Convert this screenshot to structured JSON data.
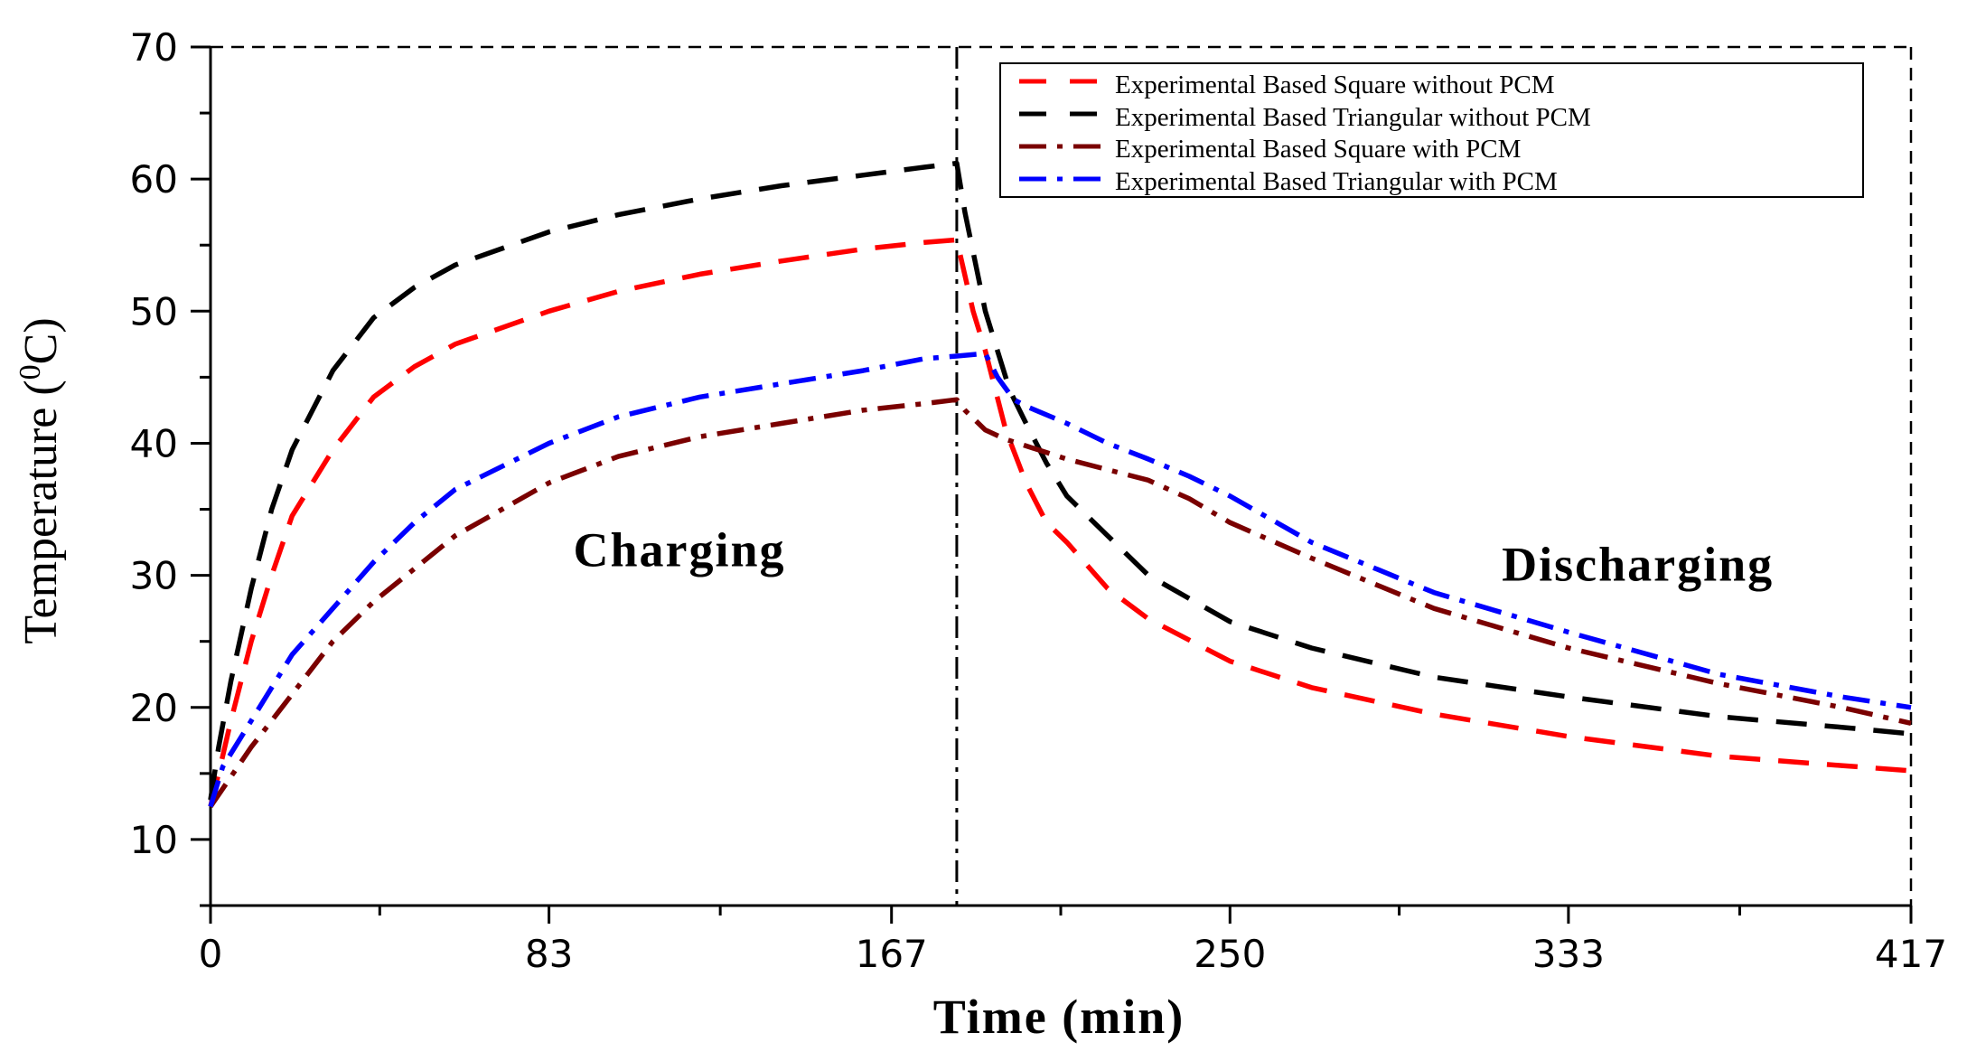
{
  "chart_data": {
    "type": "line",
    "xlabel": "Time (min)",
    "ylabel_main": "Temperature (",
    "ylabel_sup": "0",
    "ylabel_unit": "C)",
    "xlim": [
      0,
      417
    ],
    "ylim": [
      5,
      70
    ],
    "x_ticks": [
      0,
      83,
      167,
      250,
      333,
      417
    ],
    "x_tick_labels": [
      "0",
      "83",
      "167",
      "250",
      "333",
      "417"
    ],
    "y_ticks": [
      10,
      20,
      30,
      40,
      50,
      60,
      70
    ],
    "y_tick_labels": [
      "10",
      "20",
      "30",
      "40",
      "50",
      "60",
      "70"
    ],
    "divider_x": 183,
    "legend_position": "top-right",
    "annotations": [
      {
        "text": "Charging",
        "x": 115,
        "y": 30.7
      },
      {
        "text": "Discharging",
        "x": 350,
        "y": 29.6
      }
    ],
    "series": [
      {
        "name": "Experimental Based Square without PCM",
        "color": "#ff0000",
        "dash": "dash",
        "points": [
          [
            0,
            12.5
          ],
          [
            2,
            15
          ],
          [
            5,
            19
          ],
          [
            10,
            25
          ],
          [
            15,
            30
          ],
          [
            20,
            34.5
          ],
          [
            30,
            39.5
          ],
          [
            40,
            43.5
          ],
          [
            50,
            45.8
          ],
          [
            60,
            47.5
          ],
          [
            83,
            50
          ],
          [
            100,
            51.5
          ],
          [
            120,
            52.8
          ],
          [
            140,
            53.8
          ],
          [
            160,
            54.7
          ],
          [
            175,
            55.2
          ],
          [
            183,
            55.4
          ],
          [
            187,
            50
          ],
          [
            190,
            47
          ],
          [
            195,
            41
          ],
          [
            200,
            37
          ],
          [
            205,
            34
          ],
          [
            210,
            32.5
          ],
          [
            220,
            29
          ],
          [
            230,
            26.7
          ],
          [
            250,
            23.5
          ],
          [
            270,
            21.5
          ],
          [
            300,
            19.5
          ],
          [
            333,
            17.8
          ],
          [
            370,
            16.3
          ],
          [
            400,
            15.6
          ],
          [
            417,
            15.2
          ]
        ]
      },
      {
        "name": "Experimental Based Triangular without PCM",
        "color": "#000000",
        "dash": "dash",
        "points": [
          [
            0,
            13
          ],
          [
            2,
            17
          ],
          [
            5,
            22
          ],
          [
            10,
            29
          ],
          [
            15,
            35
          ],
          [
            20,
            39.5
          ],
          [
            30,
            45.5
          ],
          [
            40,
            49.5
          ],
          [
            50,
            51.8
          ],
          [
            60,
            53.5
          ],
          [
            83,
            56
          ],
          [
            100,
            57.3
          ],
          [
            120,
            58.5
          ],
          [
            140,
            59.5
          ],
          [
            160,
            60.3
          ],
          [
            175,
            60.9
          ],
          [
            183,
            61.2
          ],
          [
            185,
            57.5
          ],
          [
            188,
            53
          ],
          [
            190,
            50
          ],
          [
            193,
            47
          ],
          [
            196,
            44
          ],
          [
            200,
            41.5
          ],
          [
            205,
            38.5
          ],
          [
            210,
            36
          ],
          [
            220,
            33
          ],
          [
            230,
            30
          ],
          [
            250,
            26.5
          ],
          [
            270,
            24.5
          ],
          [
            300,
            22.3
          ],
          [
            333,
            20.8
          ],
          [
            370,
            19.3
          ],
          [
            400,
            18.5
          ],
          [
            417,
            18
          ]
        ]
      },
      {
        "name": "Experimental Based Square with PCM",
        "color": "#7a0000",
        "dash": "dashdot",
        "points": [
          [
            0,
            12.5
          ],
          [
            10,
            17
          ],
          [
            20,
            21
          ],
          [
            30,
            25
          ],
          [
            40,
            28
          ],
          [
            50,
            30.5
          ],
          [
            60,
            33
          ],
          [
            83,
            37
          ],
          [
            100,
            39
          ],
          [
            120,
            40.5
          ],
          [
            140,
            41.5
          ],
          [
            160,
            42.5
          ],
          [
            175,
            43
          ],
          [
            183,
            43.3
          ],
          [
            185,
            42.5
          ],
          [
            190,
            41
          ],
          [
            195,
            40.3
          ],
          [
            200,
            39.8
          ],
          [
            210,
            38.8
          ],
          [
            220,
            38
          ],
          [
            230,
            37.2
          ],
          [
            240,
            35.8
          ],
          [
            250,
            34
          ],
          [
            270,
            31.3
          ],
          [
            300,
            27.5
          ],
          [
            333,
            24.5
          ],
          [
            370,
            21.8
          ],
          [
            400,
            20
          ],
          [
            417,
            18.8
          ]
        ]
      },
      {
        "name": "Experimental Based Triangular with PCM",
        "color": "#0000ff",
        "dash": "dashdot",
        "points": [
          [
            0,
            12.5
          ],
          [
            3,
            15.5
          ],
          [
            10,
            19
          ],
          [
            20,
            24
          ],
          [
            30,
            27.5
          ],
          [
            40,
            31
          ],
          [
            50,
            34
          ],
          [
            60,
            36.5
          ],
          [
            83,
            40
          ],
          [
            100,
            42
          ],
          [
            120,
            43.5
          ],
          [
            140,
            44.5
          ],
          [
            160,
            45.5
          ],
          [
            175,
            46.4
          ],
          [
            183,
            46.6
          ],
          [
            190,
            46.8
          ],
          [
            193,
            45
          ],
          [
            197,
            43.3
          ],
          [
            200,
            42.8
          ],
          [
            210,
            41.5
          ],
          [
            220,
            40
          ],
          [
            230,
            38.8
          ],
          [
            240,
            37.5
          ],
          [
            250,
            36
          ],
          [
            270,
            32.5
          ],
          [
            300,
            28.7
          ],
          [
            333,
            25.7
          ],
          [
            370,
            22.5
          ],
          [
            400,
            20.8
          ],
          [
            417,
            20
          ]
        ]
      }
    ]
  }
}
